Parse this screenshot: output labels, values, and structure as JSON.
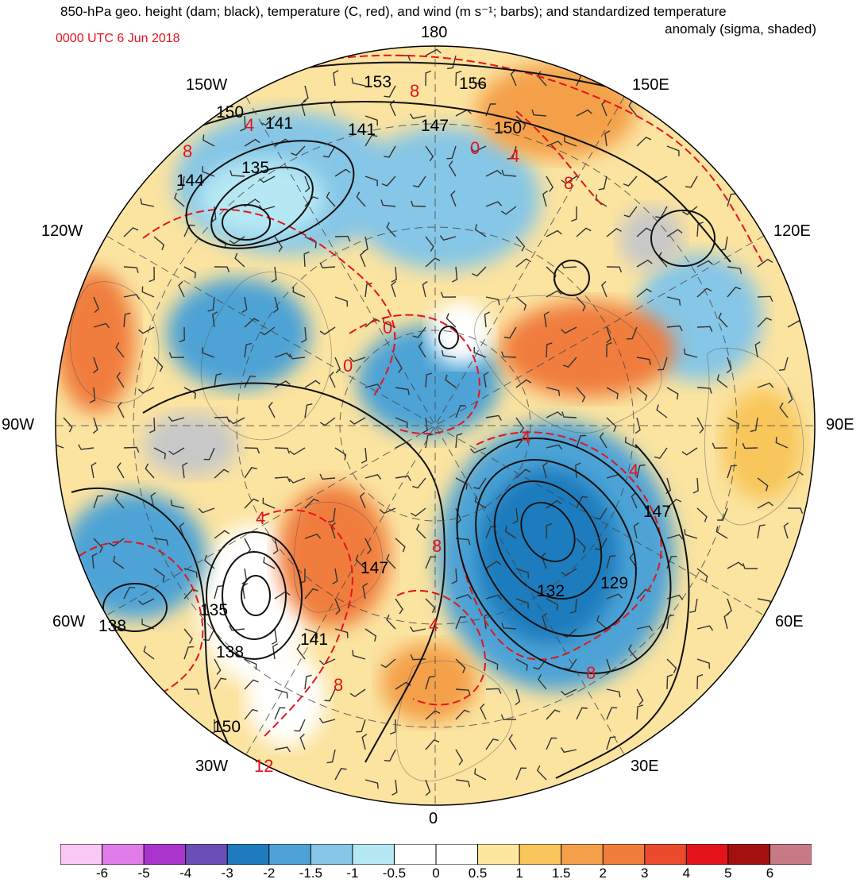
{
  "title": {
    "line1": "850-hPa geo. height (dam; black), temperature (C, red), and wind (m s⁻¹; barbs); and standardized temperature",
    "line2": "anomaly (sigma, shaded)",
    "datetime": "0000 UTC 6 Jun 2018"
  },
  "map": {
    "projection": "north-polar-stereographic",
    "longitude_labels": {
      "top": "180",
      "bottom": "0",
      "left": "90W",
      "right": "90E",
      "upper_left": "150W",
      "upper_right": "150E",
      "mid_left": "120W",
      "mid_right": "120E",
      "lower_left": "60W",
      "lower_right": "60E",
      "bottom_left": "30W",
      "bottom_right": "30E"
    },
    "height_contour_labels": [
      "153",
      "156",
      "150",
      "141",
      "141",
      "147",
      "150",
      "135",
      "144",
      "147",
      "132",
      "129",
      "147",
      "135",
      "138",
      "141",
      "138",
      "150"
    ],
    "temperature_contour_labels": [
      "8",
      "4",
      "8",
      "0",
      "4",
      "8",
      "0",
      "0",
      "4",
      "4",
      "8",
      "8",
      "4",
      "4",
      "8",
      "12"
    ],
    "colors": {
      "height": "#000000",
      "temperature": "#e4141b"
    }
  },
  "colorbar": {
    "ticks": [
      "-6",
      "-5",
      "-4",
      "-3",
      "-2",
      "-1.5",
      "-1",
      "-0.5",
      "0",
      "0.5",
      "1",
      "1.5",
      "2",
      "3",
      "4",
      "5",
      "6"
    ],
    "colors": [
      "#f9c8f5",
      "#e07ce8",
      "#a834cc",
      "#6b4fb8",
      "#1f7bbd",
      "#4ea3d6",
      "#86c6e6",
      "#b6e8f4",
      "#ffffff",
      "#ffffff",
      "#fce79c",
      "#f8c65a",
      "#f4a04a",
      "#f07d3c",
      "#ec4a2c",
      "#e4141b",
      "#a31010",
      "#c77a85"
    ]
  }
}
